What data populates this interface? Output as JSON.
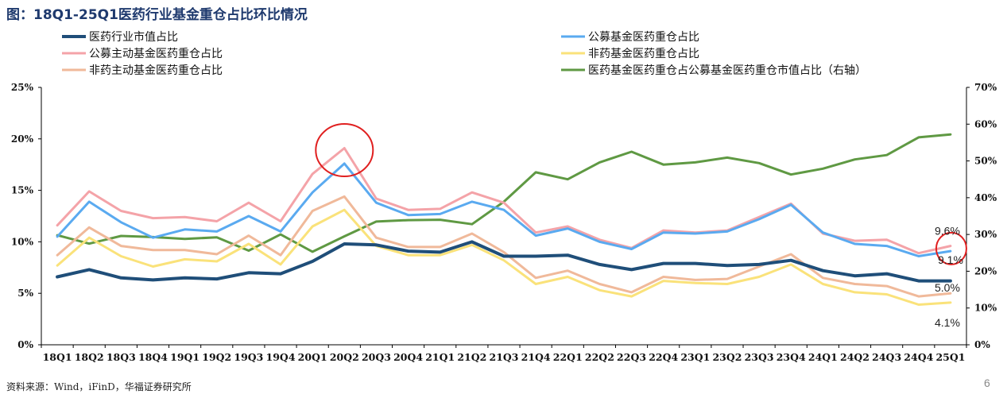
{
  "title": "图：18Q1-25Q1医药行业基金重仓占比环比情况",
  "footer": "资料来源：Wind，iFinD，华福证券研究所",
  "page_number": "6",
  "chart_data": {
    "type": "line",
    "title": "图：18Q1-25Q1医药行业基金重仓占比环比情况",
    "categories": [
      "18Q1",
      "18Q2",
      "18Q3",
      "18Q4",
      "19Q1",
      "19Q2",
      "19Q3",
      "19Q4",
      "20Q1",
      "20Q2",
      "20Q3",
      "20Q4",
      "21Q1",
      "21Q2",
      "21Q3",
      "21Q4",
      "22Q1",
      "22Q2",
      "22Q3",
      "22Q4",
      "23Q1",
      "23Q2",
      "23Q3",
      "23Q4",
      "24Q1",
      "24Q2",
      "24Q3",
      "24Q4",
      "25Q1"
    ],
    "y_left": {
      "range": [
        0,
        25
      ],
      "ticks": [
        "0%",
        "5%",
        "10%",
        "15%",
        "20%",
        "25%"
      ]
    },
    "y_right": {
      "range": [
        0,
        70
      ],
      "ticks": [
        "0%",
        "10%",
        "20%",
        "30%",
        "40%",
        "50%",
        "60%",
        "70%"
      ]
    },
    "grid": false,
    "legend_position": "top",
    "series": [
      {
        "name": "医药行业市值占比",
        "color": "#1f4e79",
        "axis": "left",
        "width": 4,
        "values": [
          6.6,
          7.3,
          6.5,
          6.3,
          6.5,
          6.4,
          7.0,
          6.9,
          8.1,
          9.8,
          9.7,
          9.1,
          9.0,
          10.0,
          8.6,
          8.6,
          8.7,
          7.8,
          7.3,
          7.9,
          7.9,
          7.7,
          7.8,
          8.2,
          7.2,
          6.7,
          6.9,
          6.2,
          6.2
        ]
      },
      {
        "name": "公募基金医药重仓占比",
        "color": "#5aaaf0",
        "axis": "left",
        "width": 3,
        "values": [
          10.5,
          13.9,
          11.9,
          10.4,
          11.2,
          11.0,
          12.5,
          11.0,
          14.8,
          17.6,
          13.8,
          12.6,
          12.7,
          13.9,
          13.1,
          10.6,
          11.3,
          10.0,
          9.3,
          10.9,
          10.8,
          11.0,
          12.2,
          13.6,
          10.9,
          9.8,
          9.6,
          8.6,
          9.1
        ]
      },
      {
        "name": "公募主动基金医药重仓占比",
        "color": "#f4a3a8",
        "axis": "left",
        "width": 3,
        "values": [
          11.6,
          14.9,
          13.0,
          12.3,
          12.4,
          12.0,
          13.8,
          12.0,
          16.6,
          19.1,
          14.2,
          13.1,
          13.2,
          14.8,
          13.8,
          10.9,
          11.5,
          10.2,
          9.4,
          11.1,
          10.9,
          11.1,
          12.4,
          13.7,
          10.8,
          10.1,
          10.2,
          8.9,
          9.6
        ]
      },
      {
        "name": "非药基金医药重仓占比",
        "color": "#fae27a",
        "axis": "left",
        "width": 3,
        "values": [
          7.7,
          10.4,
          8.6,
          7.6,
          8.3,
          8.1,
          9.8,
          7.8,
          11.5,
          13.1,
          9.6,
          8.7,
          8.7,
          9.7,
          8.2,
          5.9,
          6.6,
          5.3,
          4.7,
          6.2,
          6.0,
          5.9,
          6.6,
          7.8,
          5.9,
          5.1,
          4.9,
          3.9,
          4.1
        ]
      },
      {
        "name": "非药主动基金医药重仓占比",
        "color": "#f0b99a",
        "axis": "left",
        "width": 3,
        "values": [
          8.7,
          11.4,
          9.6,
          9.2,
          9.2,
          8.8,
          10.6,
          8.7,
          13.0,
          14.4,
          10.4,
          9.5,
          9.5,
          10.8,
          9.0,
          6.5,
          7.2,
          5.9,
          5.1,
          6.6,
          6.3,
          6.4,
          7.6,
          8.8,
          6.5,
          5.9,
          5.7,
          4.7,
          5.0
        ]
      },
      {
        "name": "医药基金医药重仓占公募基金医药重仓市值占比（右轴）",
        "color": "#5f9943",
        "axis": "right",
        "width": 3,
        "values": [
          29.8,
          27.5,
          29.6,
          29.3,
          28.8,
          29.2,
          25.6,
          30.0,
          25.3,
          29.5,
          33.5,
          33.9,
          34.0,
          32.8,
          38.9,
          46.9,
          45.0,
          49.6,
          52.5,
          49.0,
          49.6,
          50.9,
          49.4,
          46.3,
          47.9,
          50.4,
          51.6,
          56.4,
          57.2
        ]
      }
    ],
    "annotations": [
      "9.6%",
      "9.1%",
      "5.0%",
      "4.1%"
    ]
  }
}
